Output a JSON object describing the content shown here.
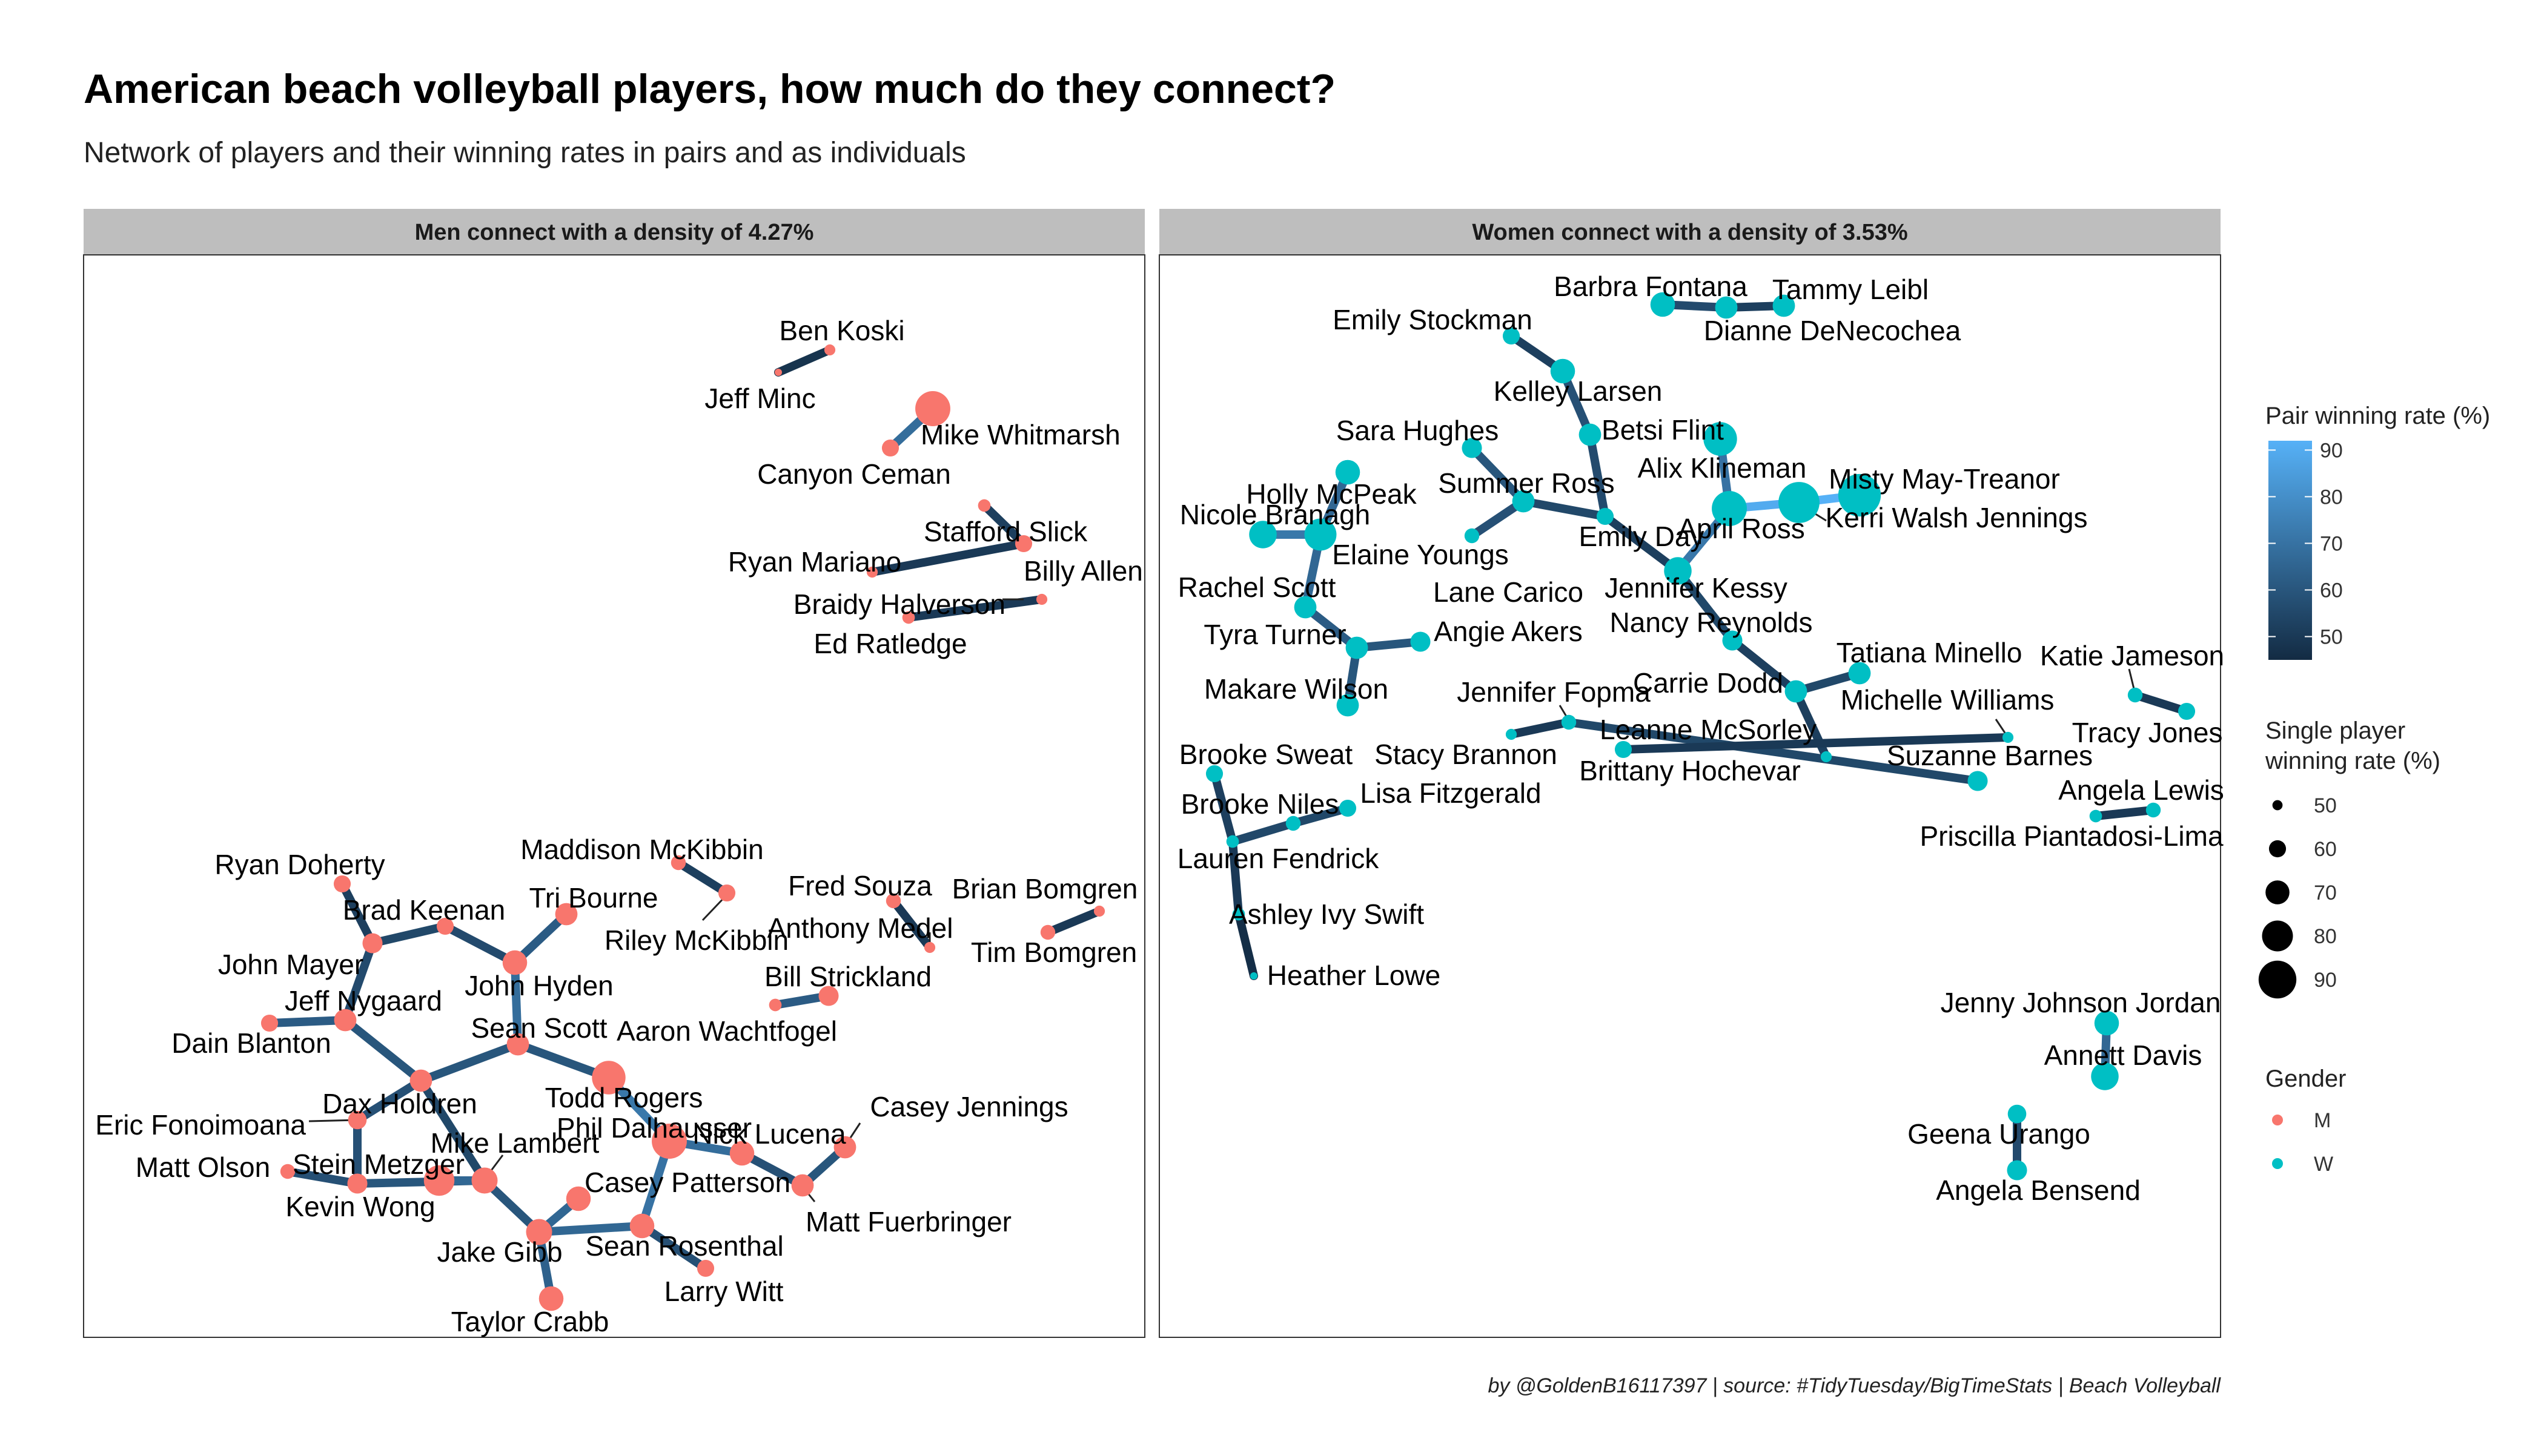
{
  "title": "American beach volleyball players, how much do they connect?",
  "subtitle": "Network of players and their winning rates in pairs and as individuals",
  "caption": "by @GoldenB16117397 | source: #TidyTuesday/BigTimeStats | Beach Volleyball",
  "panels": [
    {
      "label": "Men connect with a density of 4.27%"
    },
    {
      "label": "Women connect with a density of 3.53%"
    }
  ],
  "legend": {
    "pair_title": "Pair winning rate (%)",
    "pair_ticks": [
      "90",
      "80",
      "70",
      "60",
      "50"
    ],
    "single_title_line1": "Single player",
    "single_title_line2": "winning rate (%)",
    "single_ticks": [
      "50",
      "60",
      "70",
      "80",
      "90"
    ],
    "gender_title": "Gender",
    "gender_items": [
      "M",
      "W"
    ]
  },
  "colors": {
    "men": "#F8766D",
    "women": "#00BFC4",
    "edge_low": "#132B43",
    "edge_high": "#56B1F7",
    "strip": "#BEBEBE"
  },
  "chart_data": {
    "type": "network",
    "edge_color_scale": "pair winning rate (%), 45 to 92",
    "node_size_scale": "single player winning rate (%)",
    "networks": [
      {
        "panel": "Men connect with a density of 4.27%",
        "nodes": [
          {
            "name": "Ben Koski",
            "rate": 50
          },
          {
            "name": "Jeff Minc",
            "rate": 45
          },
          {
            "name": "Mike Whitmarsh",
            "rate": 82
          },
          {
            "name": "Canyon Ceman",
            "rate": 58
          },
          {
            "name": "Stafford Slick",
            "rate": 52
          },
          {
            "name": "Billy Allen",
            "rate": 58
          },
          {
            "name": "Ryan Mariano",
            "rate": 50
          },
          {
            "name": "Braidy Halverson",
            "rate": 50
          },
          {
            "name": "Ed Ratledge",
            "rate": 52
          },
          {
            "name": "Maddison McKibbin",
            "rate": 55
          },
          {
            "name": "Riley McKibbin",
            "rate": 58
          },
          {
            "name": "Fred Souza",
            "rate": 55
          },
          {
            "name": "Anthony Medel",
            "rate": 50
          },
          {
            "name": "Brian Bomgren",
            "rate": 50
          },
          {
            "name": "Tim Bomgren",
            "rate": 55
          },
          {
            "name": "Bill Strickland",
            "rate": 62
          },
          {
            "name": "Aaron Wachtfogel",
            "rate": 52
          },
          {
            "name": "Ryan Doherty",
            "rate": 58
          },
          {
            "name": "Brad Keenan",
            "rate": 58
          },
          {
            "name": "Tri Bourne",
            "rate": 65
          },
          {
            "name": "John Mayer",
            "rate": 62
          },
          {
            "name": "John Hyden",
            "rate": 68
          },
          {
            "name": "Jeff Nygaard",
            "rate": 65
          },
          {
            "name": "Dain Blanton",
            "rate": 58
          },
          {
            "name": "Sean Scott",
            "rate": 65
          },
          {
            "name": "Dax Holdren",
            "rate": 65
          },
          {
            "name": "Todd Rogers",
            "rate": 80
          },
          {
            "name": "Eric Fonoimoana",
            "rate": 60
          },
          {
            "name": "Phil Dalhausser",
            "rate": 82
          },
          {
            "name": "Nick Lucena",
            "rate": 68
          },
          {
            "name": "Casey Jennings",
            "rate": 65
          },
          {
            "name": "Matt Olson",
            "rate": 55
          },
          {
            "name": "Stein Metzger",
            "rate": 62
          },
          {
            "name": "Mike Lambert",
            "rate": 70
          },
          {
            "name": "Kevin Wong",
            "rate": 76
          },
          {
            "name": "Casey Patterson",
            "rate": 68
          },
          {
            "name": "Matt Fuerbringer",
            "rate": 65
          },
          {
            "name": "Jake Gibb",
            "rate": 70
          },
          {
            "name": "Sean Rosenthal",
            "rate": 68
          },
          {
            "name": "Larry Witt",
            "rate": 58
          },
          {
            "name": "Taylor Crabb",
            "rate": 68
          }
        ],
        "edges": [
          {
            "from": "Ben Koski",
            "to": "Jeff Minc",
            "rate": 48
          },
          {
            "from": "Mike Whitmarsh",
            "to": "Canyon Ceman",
            "rate": 68
          },
          {
            "from": "Stafford Slick",
            "to": "Billy Allen",
            "rate": 52
          },
          {
            "from": "Billy Allen",
            "to": "Ryan Mariano",
            "rate": 50
          },
          {
            "from": "Braidy Halverson",
            "to": "Ed Ratledge",
            "rate": 50
          },
          {
            "from": "Maddison McKibbin",
            "to": "Riley McKibbin",
            "rate": 52
          },
          {
            "from": "Fred Souza",
            "to": "Anthony Medel",
            "rate": 50
          },
          {
            "from": "Brian Bomgren",
            "to": "Tim Bomgren",
            "rate": 50
          },
          {
            "from": "Bill Strickland",
            "to": "Aaron Wachtfogel",
            "rate": 62
          },
          {
            "from": "Ryan Doherty",
            "to": "John Mayer",
            "rate": 52
          },
          {
            "from": "John Mayer",
            "to": "Brad Keenan",
            "rate": 55
          },
          {
            "from": "Brad Keenan",
            "to": "John Hyden",
            "rate": 56
          },
          {
            "from": "Tri Bourne",
            "to": "John Hyden",
            "rate": 62
          },
          {
            "from": "John Hyden",
            "to": "Sean Scott",
            "rate": 68
          },
          {
            "from": "John Mayer",
            "to": "Jeff Nygaard",
            "rate": 56
          },
          {
            "from": "Dain Blanton",
            "to": "Jeff Nygaard",
            "rate": 62
          },
          {
            "from": "Jeff Nygaard",
            "to": "Dax Holdren",
            "rate": 60
          },
          {
            "from": "Sean Scott",
            "to": "Dax Holdren",
            "rate": 60
          },
          {
            "from": "Sean Scott",
            "to": "Todd Rogers",
            "rate": 60
          },
          {
            "from": "Todd Rogers",
            "to": "Phil Dalhausser",
            "rate": 72
          },
          {
            "from": "Phil Dalhausser",
            "to": "Nick Lucena",
            "rate": 68
          },
          {
            "from": "Nick Lucena",
            "to": "Matt Fuerbringer",
            "rate": 58
          },
          {
            "from": "Matt Fuerbringer",
            "to": "Casey Jennings",
            "rate": 60
          },
          {
            "from": "Phil Dalhausser",
            "to": "Sean Rosenthal",
            "rate": 70
          },
          {
            "from": "Dax Holdren",
            "to": "Eric Fonoimoana",
            "rate": 58
          },
          {
            "from": "Eric Fonoimoana",
            "to": "Stein Metzger",
            "rate": 58
          },
          {
            "from": "Dax Holdren",
            "to": "Mike Lambert",
            "rate": 55
          },
          {
            "from": "Matt Olson",
            "to": "Stein Metzger",
            "rate": 58
          },
          {
            "from": "Stein Metzger",
            "to": "Mike Lambert",
            "rate": 60
          },
          {
            "from": "Mike Lambert",
            "to": "Kevin Wong",
            "rate": 66
          },
          {
            "from": "Mike Lambert",
            "to": "Jake Gibb",
            "rate": 60
          },
          {
            "from": "Jake Gibb",
            "to": "Casey Patterson",
            "rate": 66
          },
          {
            "from": "Jake Gibb",
            "to": "Sean Rosenthal",
            "rate": 66
          },
          {
            "from": "Jake Gibb",
            "to": "Taylor Crabb",
            "rate": 64
          },
          {
            "from": "Sean Rosenthal",
            "to": "Larry Witt",
            "rate": 58
          }
        ]
      },
      {
        "panel": "Women connect with a density of 3.53%",
        "nodes": [
          {
            "name": "Barbra Fontana",
            "rate": 68
          },
          {
            "name": "Tammy Leibl",
            "rate": 65
          },
          {
            "name": "Dianne DeNecochea",
            "rate": 65
          },
          {
            "name": "Emily Stockman",
            "rate": 58
          },
          {
            "name": "Kelley Larsen",
            "rate": 68
          },
          {
            "name": "Betsi Flint",
            "rate": 65
          },
          {
            "name": "Sara Hughes",
            "rate": 62
          },
          {
            "name": "Holly McPeak",
            "rate": 68
          },
          {
            "name": "Summer Ross",
            "rate": 65
          },
          {
            "name": "Alix Klineman",
            "rate": 80
          },
          {
            "name": "Misty May-Treanor",
            "rate": 92
          },
          {
            "name": "Kerri Walsh Jennings",
            "rate": 90
          },
          {
            "name": "Nicole Branagh",
            "rate": 72
          },
          {
            "name": "Elaine Youngs",
            "rate": 78
          },
          {
            "name": "Emily Day",
            "rate": 58
          },
          {
            "name": "April Ross",
            "rate": 82
          },
          {
            "name": "Lane Carico",
            "rate": 55
          },
          {
            "name": "Jennifer Kessy",
            "rate": 72
          },
          {
            "name": "Rachel Scott",
            "rate": 65
          },
          {
            "name": "Nancy Reynolds",
            "rate": 62
          },
          {
            "name": "Tyra Turner",
            "rate": 65
          },
          {
            "name": "Angie Akers",
            "rate": 62
          },
          {
            "name": "Makare Wilson",
            "rate": 65
          },
          {
            "name": "Tatiana Minello",
            "rate": 65
          },
          {
            "name": "Katie Jameson",
            "rate": 55
          },
          {
            "name": "Carrie Dodd",
            "rate": 65
          },
          {
            "name": "Jennifer Fopma",
            "rate": 55
          },
          {
            "name": "Michelle Williams",
            "rate": 50
          },
          {
            "name": "Tracy Jones",
            "rate": 58
          },
          {
            "name": "Leanne McSorley",
            "rate": 58
          },
          {
            "name": "Stacy Brannon",
            "rate": 50
          },
          {
            "name": "Brittany Hochevar",
            "rate": 62
          },
          {
            "name": "Suzanne Barnes",
            "rate": 50
          },
          {
            "name": "Brooke Sweat",
            "rate": 58
          },
          {
            "name": "Lisa Fitzgerald",
            "rate": 58
          },
          {
            "name": "Brooke Niles",
            "rate": 55
          },
          {
            "name": "Lauren Fendrick",
            "rate": 52
          },
          {
            "name": "Angela Lewis",
            "rate": 55
          },
          {
            "name": "Priscilla Piantadosi-Lima",
            "rate": 52
          },
          {
            "name": "Ashley Ivy Swift",
            "rate": 52
          },
          {
            "name": "Heather Lowe",
            "rate": 45
          },
          {
            "name": "Jenny Johnson Jordan",
            "rate": 68
          },
          {
            "name": "Annett Davis",
            "rate": 72
          },
          {
            "name": "Geena Urango",
            "rate": 60
          },
          {
            "name": "Angela Bensend",
            "rate": 62
          }
        ],
        "edges": [
          {
            "from": "Barbra Fontana",
            "to": "Dianne DeNecochea",
            "rate": 56
          },
          {
            "from": "Dianne DeNecochea",
            "to": "Tammy Leibl",
            "rate": 52
          },
          {
            "from": "Emily Stockman",
            "to": "Kelley Larsen",
            "rate": 52
          },
          {
            "from": "Kelley Larsen",
            "to": "Betsi Flint",
            "rate": 58
          },
          {
            "from": "Betsi Flint",
            "to": "Emily Day",
            "rate": 56
          },
          {
            "from": "Sara Hughes",
            "to": "Summer Ross",
            "rate": 60
          },
          {
            "from": "Summer Ross",
            "to": "Lane Carico",
            "rate": 58
          },
          {
            "from": "Summer Ross",
            "to": "Emily Day",
            "rate": 55
          },
          {
            "from": "Emily Day",
            "to": "Jennifer Kessy",
            "rate": 52
          },
          {
            "from": "Alix Klineman",
            "to": "April Ross",
            "rate": 70
          },
          {
            "from": "April Ross",
            "to": "Kerri Walsh Jennings",
            "rate": 90
          },
          {
            "from": "Kerri Walsh Jennings",
            "to": "Misty May-Treanor",
            "rate": 92
          },
          {
            "from": "April Ross",
            "to": "Jennifer Kessy",
            "rate": 72
          },
          {
            "from": "Jennifer Kessy",
            "to": "Nancy Reynolds",
            "rate": 55
          },
          {
            "from": "Nancy Reynolds",
            "to": "Carrie Dodd",
            "rate": 52
          },
          {
            "from": "Carrie Dodd",
            "to": "Tatiana Minello",
            "rate": 55
          },
          {
            "from": "Carrie Dodd",
            "to": "Suzanne Barnes",
            "rate": 52
          },
          {
            "from": "Holly McPeak",
            "to": "Elaine Youngs",
            "rate": 66
          },
          {
            "from": "Nicole Branagh",
            "to": "Elaine Youngs",
            "rate": 72
          },
          {
            "from": "Elaine Youngs",
            "to": "Rachel Scott",
            "rate": 66
          },
          {
            "from": "Rachel Scott",
            "to": "Tyra Turner",
            "rate": 62
          },
          {
            "from": "Tyra Turner",
            "to": "Angie Akers",
            "rate": 60
          },
          {
            "from": "Tyra Turner",
            "to": "Makare Wilson",
            "rate": 60
          },
          {
            "from": "Katie Jameson",
            "to": "Tracy Jones",
            "rate": 50
          },
          {
            "from": "Stacy Brannon",
            "to": "Jennifer Fopma",
            "rate": 50
          },
          {
            "from": "Jennifer Fopma",
            "to": "Brittany Hochevar",
            "rate": 55
          },
          {
            "from": "Michelle Williams",
            "to": "Leanne McSorley",
            "rate": 50
          },
          {
            "from": "Brooke Sweat",
            "to": "Lauren Fendrick",
            "rate": 52
          },
          {
            "from": "Lauren Fendrick",
            "to": "Brooke Niles",
            "rate": 55
          },
          {
            "from": "Brooke Niles",
            "to": "Lisa Fitzgerald",
            "rate": 55
          },
          {
            "from": "Lauren Fendrick",
            "to": "Ashley Ivy Swift",
            "rate": 50
          },
          {
            "from": "Ashley Ivy Swift",
            "to": "Heather Lowe",
            "rate": 46
          },
          {
            "from": "Angela Lewis",
            "to": "Priscilla Piantadosi-Lima",
            "rate": 50
          },
          {
            "from": "Jenny Johnson Jordan",
            "to": "Annett Davis",
            "rate": 66
          },
          {
            "from": "Geena Urango",
            "to": "Angela Bensend",
            "rate": 56
          }
        ]
      }
    ]
  }
}
